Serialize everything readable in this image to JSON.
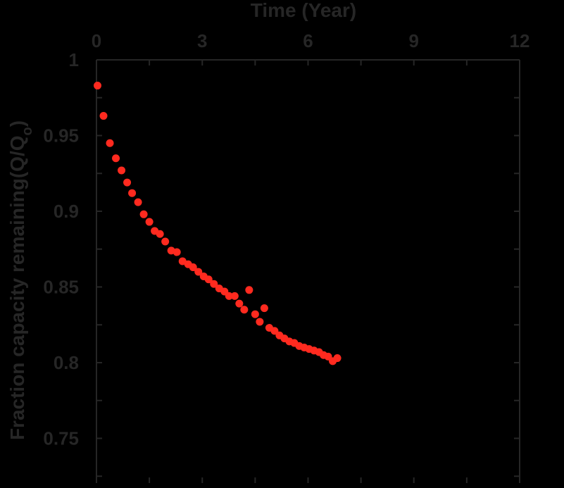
{
  "chart_data": {
    "type": "scatter",
    "title": "",
    "xlabel": "Time (Year)",
    "ylabel": "Fraction capacity remaining(Q/Q",
    "ylabel_sub": "o",
    "ylabel_end": ")",
    "xlim": [
      0,
      12
    ],
    "ylim": [
      0.72,
      1
    ],
    "xticks": [
      0,
      3,
      6,
      9,
      12
    ],
    "yticks": [
      0.75,
      0.8,
      0.85,
      0.9,
      0.95,
      1
    ],
    "xtick_labels": [
      "0",
      "3",
      "6",
      "9",
      "12"
    ],
    "ytick_labels": [
      "0.75",
      "0.8",
      "0.85",
      "0.9",
      "0.95",
      "1"
    ],
    "x_axis_position": "top",
    "grid": false,
    "colors": {
      "background": "#000000",
      "axis": "#262626",
      "marker": "#ff2a1f"
    },
    "points": [
      {
        "x": 0.03,
        "y": 0.983
      },
      {
        "x": 0.2,
        "y": 0.963
      },
      {
        "x": 0.38,
        "y": 0.945
      },
      {
        "x": 0.55,
        "y": 0.935
      },
      {
        "x": 0.71,
        "y": 0.927
      },
      {
        "x": 0.87,
        "y": 0.919
      },
      {
        "x": 1.01,
        "y": 0.912
      },
      {
        "x": 1.18,
        "y": 0.906
      },
      {
        "x": 1.34,
        "y": 0.898
      },
      {
        "x": 1.5,
        "y": 0.893
      },
      {
        "x": 1.65,
        "y": 0.887
      },
      {
        "x": 1.8,
        "y": 0.885
      },
      {
        "x": 1.95,
        "y": 0.88
      },
      {
        "x": 2.12,
        "y": 0.874
      },
      {
        "x": 2.28,
        "y": 0.873
      },
      {
        "x": 2.44,
        "y": 0.867
      },
      {
        "x": 2.6,
        "y": 0.865
      },
      {
        "x": 2.74,
        "y": 0.863
      },
      {
        "x": 2.89,
        "y": 0.86
      },
      {
        "x": 3.04,
        "y": 0.857
      },
      {
        "x": 3.18,
        "y": 0.855
      },
      {
        "x": 3.33,
        "y": 0.852
      },
      {
        "x": 3.48,
        "y": 0.849
      },
      {
        "x": 3.63,
        "y": 0.847
      },
      {
        "x": 3.76,
        "y": 0.844
      },
      {
        "x": 3.92,
        "y": 0.844
      },
      {
        "x": 4.05,
        "y": 0.839
      },
      {
        "x": 4.19,
        "y": 0.835
      },
      {
        "x": 4.33,
        "y": 0.848
      },
      {
        "x": 4.5,
        "y": 0.832
      },
      {
        "x": 4.63,
        "y": 0.827
      },
      {
        "x": 4.76,
        "y": 0.836
      },
      {
        "x": 4.9,
        "y": 0.823
      },
      {
        "x": 5.05,
        "y": 0.821
      },
      {
        "x": 5.19,
        "y": 0.818
      },
      {
        "x": 5.33,
        "y": 0.816
      },
      {
        "x": 5.47,
        "y": 0.814
      },
      {
        "x": 5.61,
        "y": 0.813
      },
      {
        "x": 5.75,
        "y": 0.811
      },
      {
        "x": 5.89,
        "y": 0.81
      },
      {
        "x": 6.03,
        "y": 0.809
      },
      {
        "x": 6.17,
        "y": 0.808
      },
      {
        "x": 6.31,
        "y": 0.807
      },
      {
        "x": 6.44,
        "y": 0.805
      },
      {
        "x": 6.57,
        "y": 0.804
      },
      {
        "x": 6.7,
        "y": 0.801
      },
      {
        "x": 6.83,
        "y": 0.803
      }
    ]
  }
}
